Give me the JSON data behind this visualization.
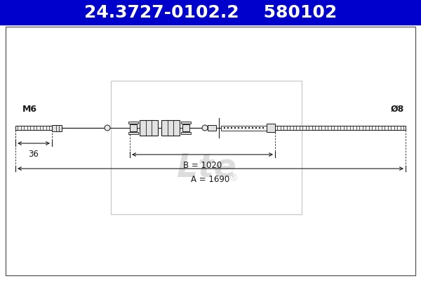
{
  "title_text": "24.3727-0102.2    580102",
  "title_bg_color": "#0000CC",
  "title_text_color": "#FFFFFF",
  "title_fontsize": 18,
  "bg_color": "#FFFFFF",
  "drawing_color": "#1a1a1a",
  "label_M6": "M6",
  "label_36": "36",
  "label_B": "B = 1020",
  "label_A": "A = 1690",
  "label_phi8": "Ø8",
  "wm_color": "#DDDDDD",
  "wm_border_color": "#CCCCCC"
}
